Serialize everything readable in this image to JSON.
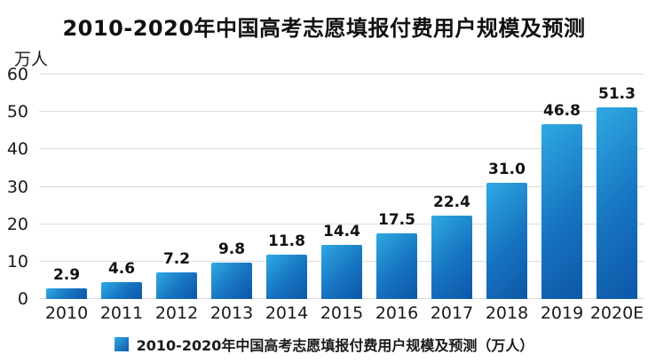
{
  "title": "2010-2020年中国高考志愿填报付费用户规模及预测",
  "y_axis_unit": "万人",
  "legend": {
    "label": "2010-2020年中国高考志愿填报付费用户规模及预测（万人）"
  },
  "colors": {
    "bar_gradient_start": "#2fa9e2",
    "bar_gradient_end": "#0d57a7",
    "gridline": "#dcdcdc",
    "text": "#111111"
  },
  "chart_data": {
    "type": "bar",
    "title": "2010-2020年中国高考志愿填报付费用户规模及预测",
    "categories": [
      "2010",
      "2011",
      "2012",
      "2013",
      "2014",
      "2015",
      "2016",
      "2017",
      "2018",
      "2019",
      "2020E"
    ],
    "values": [
      2.9,
      4.6,
      7.2,
      9.8,
      11.8,
      14.4,
      17.5,
      22.4,
      31.0,
      46.8,
      51.3
    ],
    "value_labels": [
      "2.9",
      "4.6",
      "7.2",
      "9.8",
      "11.8",
      "14.4",
      "17.5",
      "22.4",
      "31.0",
      "46.8",
      "51.3"
    ],
    "xlabel": "",
    "ylabel": "万人",
    "ylim": [
      0,
      60
    ],
    "yticks": [
      0,
      10,
      20,
      30,
      40,
      50,
      60
    ],
    "grid": true,
    "legend_position": "bottom",
    "legend_entries": [
      "2010-2020年中国高考志愿填报付费用户规模及预测（万人）"
    ]
  }
}
